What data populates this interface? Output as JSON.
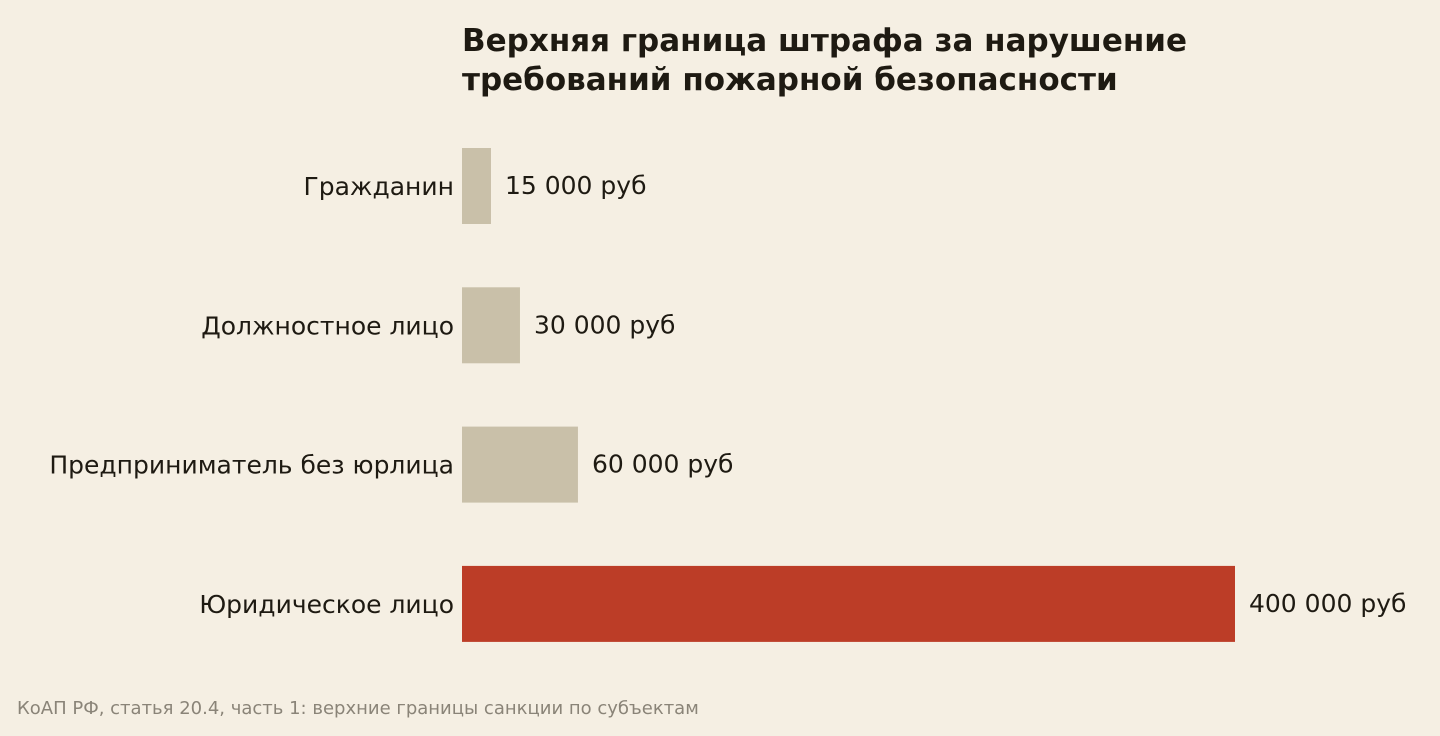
{
  "chart_data": {
    "type": "bar",
    "orientation": "horizontal",
    "title_lines": [
      "Верхняя граница штрафа за нарушение",
      "требований пожарной безопасности"
    ],
    "categories": [
      "Гражданин",
      "Должностное лицо",
      "Предприниматель без юрлица",
      "Юридическое лицо"
    ],
    "values": [
      15000,
      30000,
      60000,
      400000
    ],
    "value_labels": [
      "15 000 руб",
      "30 000 руб",
      "60 000 руб",
      "400 000 руб"
    ],
    "bar_colors": [
      "#c9c0a9",
      "#c9c0a9",
      "#c9c0a9",
      "#bc3d27"
    ],
    "xlim": [
      0,
      400000
    ],
    "grid": false,
    "legend": "none",
    "xlabel": "",
    "ylabel": ""
  },
  "footer": {
    "source": "КоАП РФ, статья 20.4, часть 1: верхние границы санкции по субъектам"
  },
  "colors": {
    "background": "#f5efe3",
    "text": "#1e1a12",
    "muted_bar": "#c9c0a9",
    "accent_bar": "#bc3d27",
    "source_text": "#8a8478"
  }
}
